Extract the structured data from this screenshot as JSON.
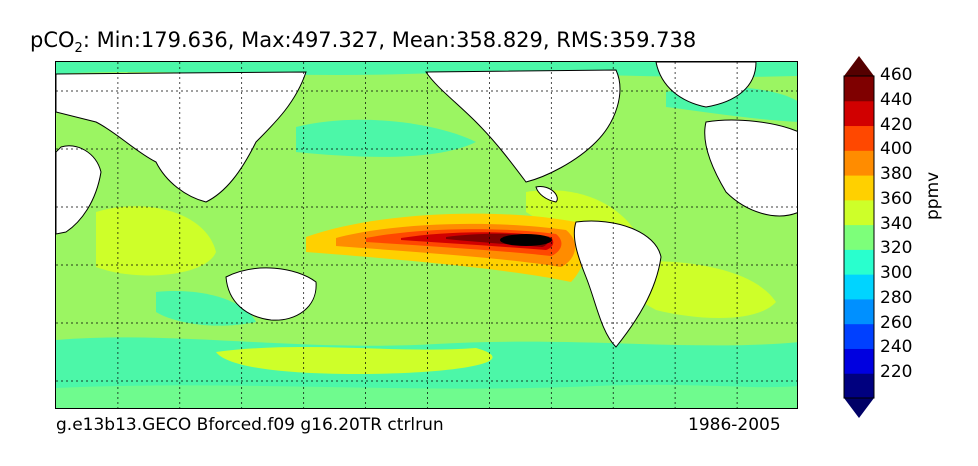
{
  "title": {
    "prefix": "pCO",
    "subscript": "2",
    "stats": ": Min:179.636, Max:497.327, Mean:358.829, RMS:359.738"
  },
  "footer": {
    "case_name": "g.e13b13.GECO Bforced.f09 g16.20TR ctrlrun",
    "years": "1986-2005"
  },
  "colorbar": {
    "label": "ppmv",
    "ticks": [
      "220",
      "240",
      "260",
      "280",
      "300",
      "320",
      "340",
      "360",
      "380",
      "400",
      "420",
      "440",
      "460"
    ],
    "colors": [
      "#00007f",
      "#0000e0",
      "#0040ff",
      "#0090ff",
      "#00d4ff",
      "#29ffce",
      "#7dff7a",
      "#ceff29",
      "#ffd000",
      "#ff8c00",
      "#ff4800",
      "#d10000",
      "#7f0000"
    ],
    "under_color": "#000066",
    "over_color": "#550000"
  },
  "map": {
    "ocean_background": "#9bf562",
    "land_color": "#ffffff",
    "grid": "dotted"
  }
}
